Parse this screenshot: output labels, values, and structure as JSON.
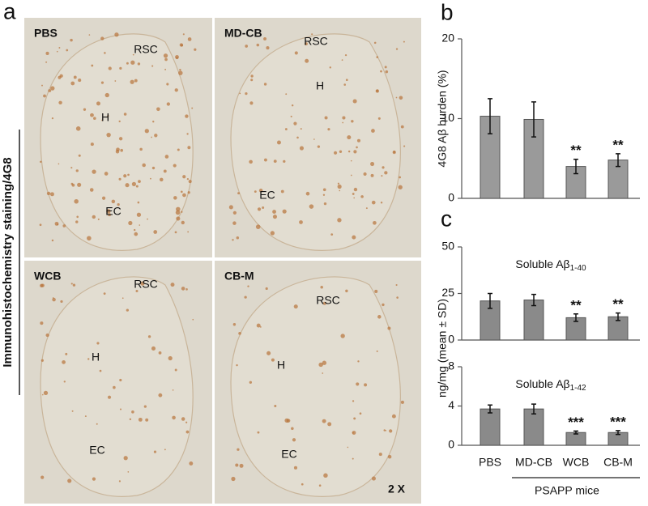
{
  "panel_labels": [
    "a",
    "b",
    "c"
  ],
  "images": {
    "side_label": "Immunohistochemistry staining/4G8",
    "magnification": "2 X",
    "panels": [
      {
        "label": "PBS",
        "regions": [
          "RSC",
          "H",
          "EC"
        ]
      },
      {
        "label": "MD-CB",
        "regions": [
          "RSC",
          "H",
          "EC"
        ]
      },
      {
        "label": "WCB",
        "regions": [
          "RSC",
          "H",
          "EC"
        ]
      },
      {
        "label": "CB-M",
        "regions": [
          "RSC",
          "H",
          "EC"
        ]
      }
    ]
  },
  "chart_data": [
    {
      "type": "bar",
      "ylabel": "4G8 Aβ burden (%)",
      "categories": [
        "PBS",
        "MD-CB",
        "WCB",
        "CB-M"
      ],
      "values": [
        10.3,
        9.9,
        4.0,
        4.8
      ],
      "errors": [
        2.2,
        2.2,
        0.9,
        0.8
      ],
      "significance": [
        null,
        null,
        "**",
        "**"
      ],
      "color": "#9a9a9a",
      "ylim": [
        0,
        20
      ],
      "yticks": [
        0,
        10,
        20
      ],
      "grid": false
    },
    {
      "type": "bar",
      "title": {
        "text": "Soluble Aβ",
        "subscript": "1-40"
      },
      "ylabel": "ng/mg (mean ± SD)",
      "categories": [
        "PBS",
        "MD-CB",
        "WCB",
        "CB-M"
      ],
      "values": [
        21,
        21.5,
        12,
        12.5
      ],
      "errors": [
        4,
        3,
        2,
        2
      ],
      "significance": [
        null,
        null,
        "**",
        "**"
      ],
      "color": "#8a8a8a",
      "ylim": [
        0,
        50
      ],
      "yticks": [
        0,
        25,
        50
      ],
      "grid": false
    },
    {
      "type": "bar",
      "title": {
        "text": "Soluble Aβ",
        "subscript": "1-42"
      },
      "categories": [
        "PBS",
        "MD-CB",
        "WCB",
        "CB-M"
      ],
      "values": [
        3.7,
        3.7,
        1.3,
        1.3
      ],
      "errors": [
        0.4,
        0.5,
        0.15,
        0.2
      ],
      "significance": [
        null,
        null,
        "***",
        "***"
      ],
      "xlabel": "PSAPP mice",
      "color": "#8a8a8a",
      "ylim": [
        0,
        8
      ],
      "yticks": [
        0,
        4,
        8
      ],
      "grid": false
    }
  ]
}
